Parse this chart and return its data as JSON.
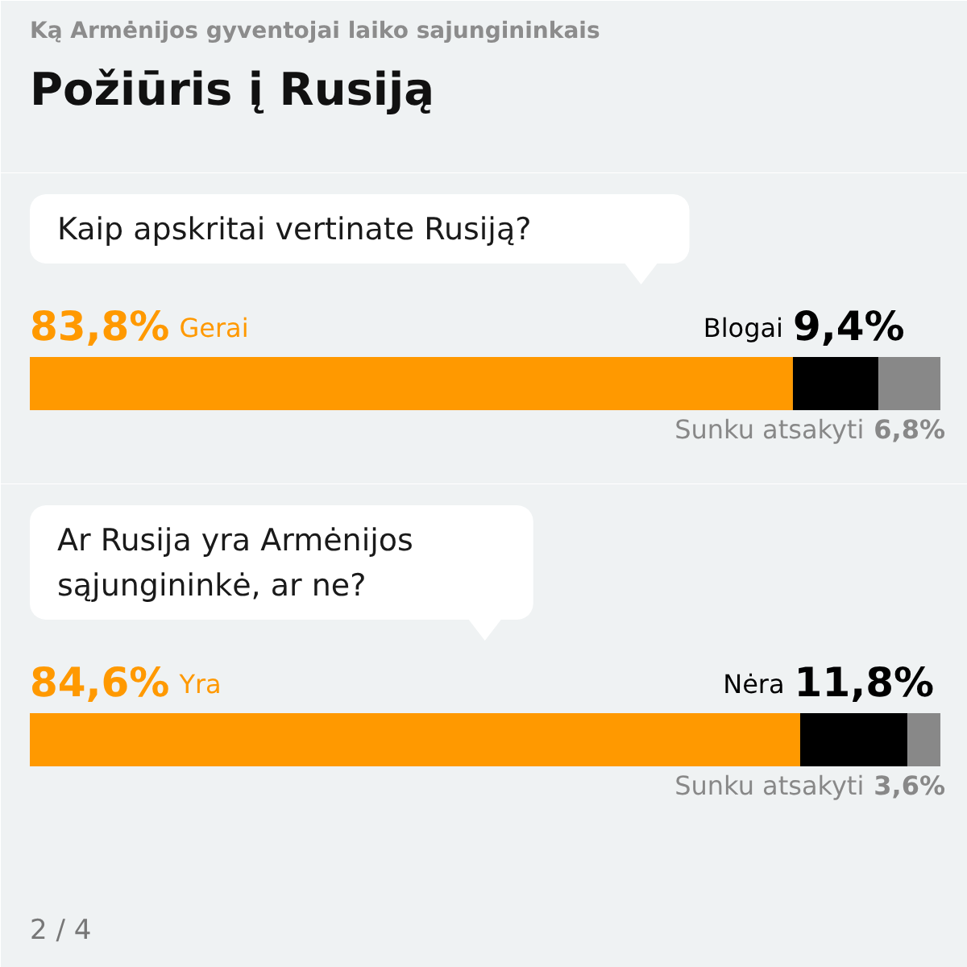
{
  "chart_data": [
    {
      "type": "other",
      "title": "Požiūris į Rusiją",
      "subtitle": "Ką Armėnijos gyventojai laiko sajungininkais"
    },
    {
      "type": "bar",
      "orientation": "horizontal",
      "stacked": true,
      "title": "Kaip apskritai vertinate Rusiją?",
      "categories": [
        null
      ],
      "xlim": [
        0,
        100
      ],
      "tick_labels": false,
      "series": [
        {
          "name": "Gerai",
          "color": "#ff9900",
          "values": [
            83.8
          ],
          "value_labels": [
            "83,8%"
          ]
        },
        {
          "name": "Blogai",
          "color": "#000000",
          "values": [
            9.4
          ],
          "value_labels": [
            "9,4%"
          ]
        },
        {
          "name": "Sunku atsakyti",
          "color": "#888888",
          "values": [
            6.8
          ],
          "value_labels": [
            "6,8%"
          ]
        }
      ]
    },
    {
      "type": "bar",
      "orientation": "horizontal",
      "stacked": true,
      "title": "Ar Rusija yra Armėnijos sąjungininkė, ar ne?",
      "categories": [
        null
      ],
      "xlim": [
        0,
        100
      ],
      "tick_labels": false,
      "series": [
        {
          "name": "Yra",
          "color": "#ff9900",
          "values": [
            84.6
          ],
          "value_labels": [
            "84,6%"
          ]
        },
        {
          "name": "Nėra",
          "color": "#000000",
          "values": [
            11.8
          ],
          "value_labels": [
            "11,8%"
          ]
        },
        {
          "name": "Sunku atsakyti",
          "color": "#888888",
          "values": [
            3.6
          ],
          "value_labels": [
            "3,6%"
          ]
        }
      ],
      "annotations": [
        "2 / 4"
      ]
    }
  ]
}
